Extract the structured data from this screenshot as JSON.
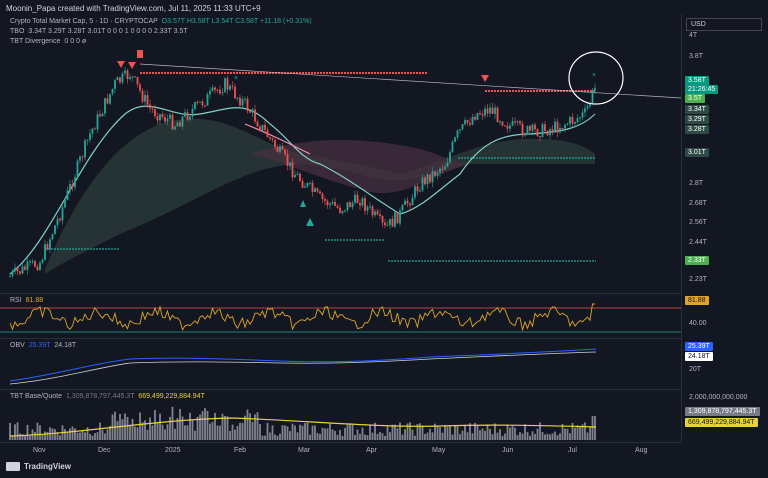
{
  "header": {
    "caption": "Moonin_Papa created with TradingView.com, Jul 11, 2025 11:33 UTC+9"
  },
  "main_legend": {
    "symbol": "Crypto Total Market Cap, 5 · 1D · CRYPTOCAP",
    "ohlc": "O3.57T H3.58T L3.54T C3.58T +11.18 (+0.31%)",
    "tbo_label": "TBO",
    "tbo_values": "3.34T 3.29T 3.28T 3.01T 0 0 0 1 0 0 0 0 2.33T 3.5T",
    "div_label": "TBT Divergence",
    "div_values": "0 0 0 ø"
  },
  "rsi_legend": {
    "label": "RSI",
    "value": "81.88"
  },
  "obv_legend": {
    "label": "OBV",
    "value1": "25.39T",
    "value2": "24.18T"
  },
  "vol_legend": {
    "label": "TBT Base/Quote",
    "value1": "1,309,878,797,445.3T",
    "value2": "669,499,229,884.94T"
  },
  "currency_button": "USD",
  "price_scale": {
    "ticks": [
      "4T",
      "3.8T",
      "2.8T",
      "2.68T",
      "2.56T",
      "2.44T",
      "2.23T"
    ],
    "tags": {
      "last_price": "3.58T",
      "countdown": "21:26:45",
      "t35": "3.5T",
      "t334": "3.34T",
      "t329": "3.29T",
      "t328": "3.28T",
      "t301": "3.01T",
      "t233": "2.33T"
    }
  },
  "rsi_scale": {
    "tag": "81.88",
    "tick": "40.00"
  },
  "obv_scale": {
    "tag1": "25.39T",
    "tag2": "24.18T",
    "tick": "20T"
  },
  "vol_scale": {
    "tick": "2,000,000,000,000",
    "tag1": "1,309,878,797,445.3T",
    "tag2": "669,499,229,884.94T"
  },
  "time_axis": [
    "Nov",
    "Dec",
    "2025",
    "Feb",
    "Mar",
    "Apr",
    "May",
    "Jun",
    "Jul",
    "Aug"
  ],
  "footer": {
    "brand": "TradingView"
  },
  "colors": {
    "background": "#131722",
    "up_candle": "#26a69a",
    "down_candle": "#ef5350",
    "rsi_line": "#e0a32b",
    "obv_line": "#2962ff",
    "price_tag": "#089981"
  }
}
